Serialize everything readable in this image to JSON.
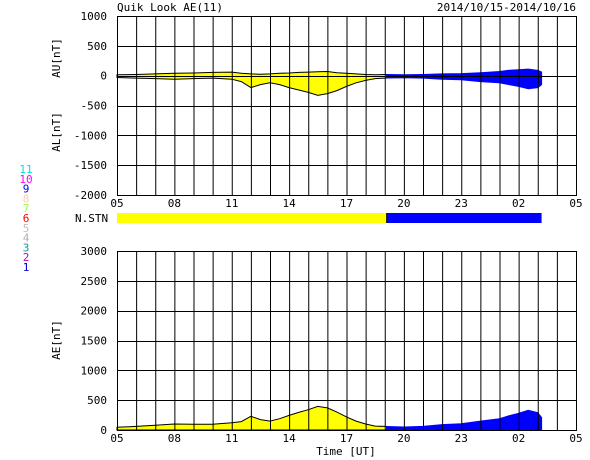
{
  "header": {
    "title": "Quik Look AE(11)",
    "date_range": "2014/10/15-2014/10/16"
  },
  "colors": {
    "yellow": "#ffff00",
    "blue": "#0000ff",
    "frame": "#000000"
  },
  "station_legend": [
    {
      "label": "11",
      "color": "#00e0e0"
    },
    {
      "label": "10",
      "color": "#ff00ff"
    },
    {
      "label": "9",
      "color": "#0000ff"
    },
    {
      "label": "8",
      "color": "#ffd0a0"
    },
    {
      "label": "7",
      "color": "#a0ff40"
    },
    {
      "label": "6",
      "color": "#ff0000"
    },
    {
      "label": "5",
      "color": "#c0c0c0"
    },
    {
      "label": "4",
      "color": "#b0b0b0"
    },
    {
      "label": "3",
      "color": "#00a0a0"
    },
    {
      "label": "2",
      "color": "#c000c0"
    },
    {
      "label": "1",
      "color": "#0000c0"
    }
  ],
  "nstn_label": "N.STN",
  "nstn_segments": [
    {
      "from": 5,
      "to": 19.1,
      "color": "#ffff00"
    },
    {
      "from": 19.1,
      "to": 27.2,
      "color": "#0000ff"
    }
  ],
  "chart_data": [
    {
      "type": "area",
      "name": "AU/AL panel",
      "ylabel_upper": "AU[nT]",
      "ylabel_lower": "AL[nT]",
      "ylim": [
        -2000,
        1000
      ],
      "yticks": [
        -2000,
        -1500,
        -1000,
        -500,
        0,
        500,
        1000
      ],
      "xlim": [
        5,
        29
      ],
      "xticks": [
        "05",
        "08",
        "11",
        "14",
        "17",
        "20",
        "23",
        "02",
        "05"
      ],
      "grid": true,
      "x_hours": [
        5,
        6,
        7,
        8,
        9,
        10,
        11,
        11.5,
        12,
        12.5,
        13,
        13.5,
        14,
        14.5,
        15,
        15.5,
        16,
        16.5,
        17,
        17.5,
        18,
        18.5,
        19,
        20,
        21,
        22,
        23,
        24,
        25,
        25.5,
        26,
        26.5,
        27,
        27.2
      ],
      "au": [
        15,
        20,
        30,
        40,
        45,
        55,
        60,
        40,
        30,
        25,
        30,
        40,
        45,
        55,
        60,
        65,
        70,
        50,
        40,
        30,
        20,
        15,
        20,
        15,
        20,
        30,
        35,
        50,
        70,
        90,
        100,
        110,
        90,
        60
      ],
      "al": [
        -30,
        -40,
        -50,
        -60,
        -50,
        -40,
        -60,
        -100,
        -200,
        -150,
        -120,
        -150,
        -200,
        -240,
        -280,
        -330,
        -300,
        -250,
        -180,
        -120,
        -80,
        -50,
        -40,
        -35,
        -40,
        -60,
        -70,
        -100,
        -120,
        -150,
        -180,
        -220,
        -200,
        -150
      ]
    },
    {
      "type": "area",
      "name": "AE panel",
      "ylabel": "AE[nT]",
      "xlabel": "Time [UT]",
      "ylim": [
        0,
        3000
      ],
      "yticks": [
        0,
        500,
        1000,
        1500,
        2000,
        2500,
        3000
      ],
      "xlim": [
        5,
        29
      ],
      "xticks": [
        "05",
        "08",
        "11",
        "14",
        "17",
        "20",
        "23",
        "02",
        "05"
      ],
      "grid": true,
      "x_hours": [
        5,
        6,
        7,
        8,
        9,
        10,
        11,
        11.5,
        12,
        12.5,
        13,
        13.5,
        14,
        14.5,
        15,
        15.5,
        16,
        16.5,
        17,
        17.5,
        18,
        18.5,
        19,
        20,
        21,
        22,
        23,
        24,
        25,
        25.5,
        26,
        26.5,
        27,
        27.2
      ],
      "ae": [
        45,
        60,
        80,
        100,
        95,
        95,
        120,
        140,
        230,
        175,
        150,
        190,
        245,
        295,
        340,
        395,
        370,
        300,
        220,
        150,
        100,
        65,
        60,
        50,
        60,
        90,
        105,
        150,
        190,
        240,
        280,
        330,
        290,
        210
      ]
    }
  ]
}
